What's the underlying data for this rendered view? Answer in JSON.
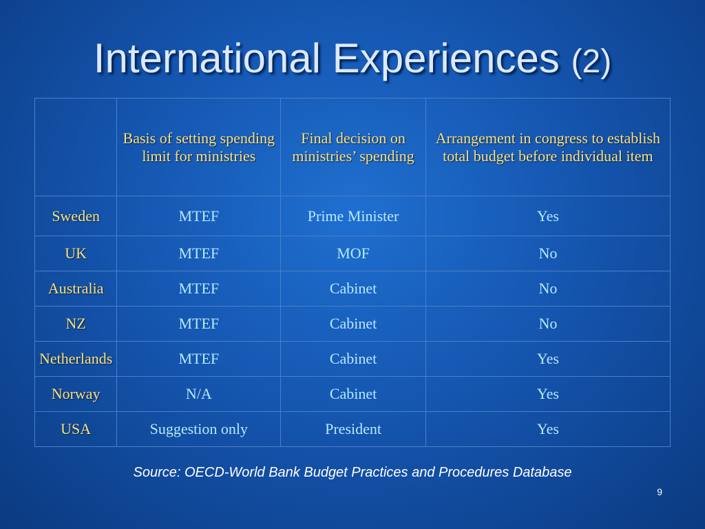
{
  "header": {
    "title": "International Experiences",
    "title_suffix": "(2)"
  },
  "table": {
    "columns": [
      "",
      "Basis of setting spending limit for ministries",
      "Final decision on ministries’ spending",
      "Arrangement in congress to establish total budget before individual item"
    ],
    "rows": [
      [
        "Sweden",
        "MTEF",
        "Prime Minister",
        "Yes"
      ],
      [
        "UK",
        "MTEF",
        "MOF",
        "No"
      ],
      [
        "Australia",
        "MTEF",
        "Cabinet",
        "No"
      ],
      [
        "NZ",
        "MTEF",
        "Cabinet",
        "No"
      ],
      [
        "Netherlands",
        "MTEF",
        "Cabinet",
        "Yes"
      ],
      [
        "Norway",
        "N/A",
        "Cabinet",
        "Yes"
      ],
      [
        "USA",
        "Suggestion only",
        "President",
        "Yes"
      ]
    ]
  },
  "source": "Source: OECD-World Bank Budget Practices and Procedures Database",
  "page_number": "9"
}
